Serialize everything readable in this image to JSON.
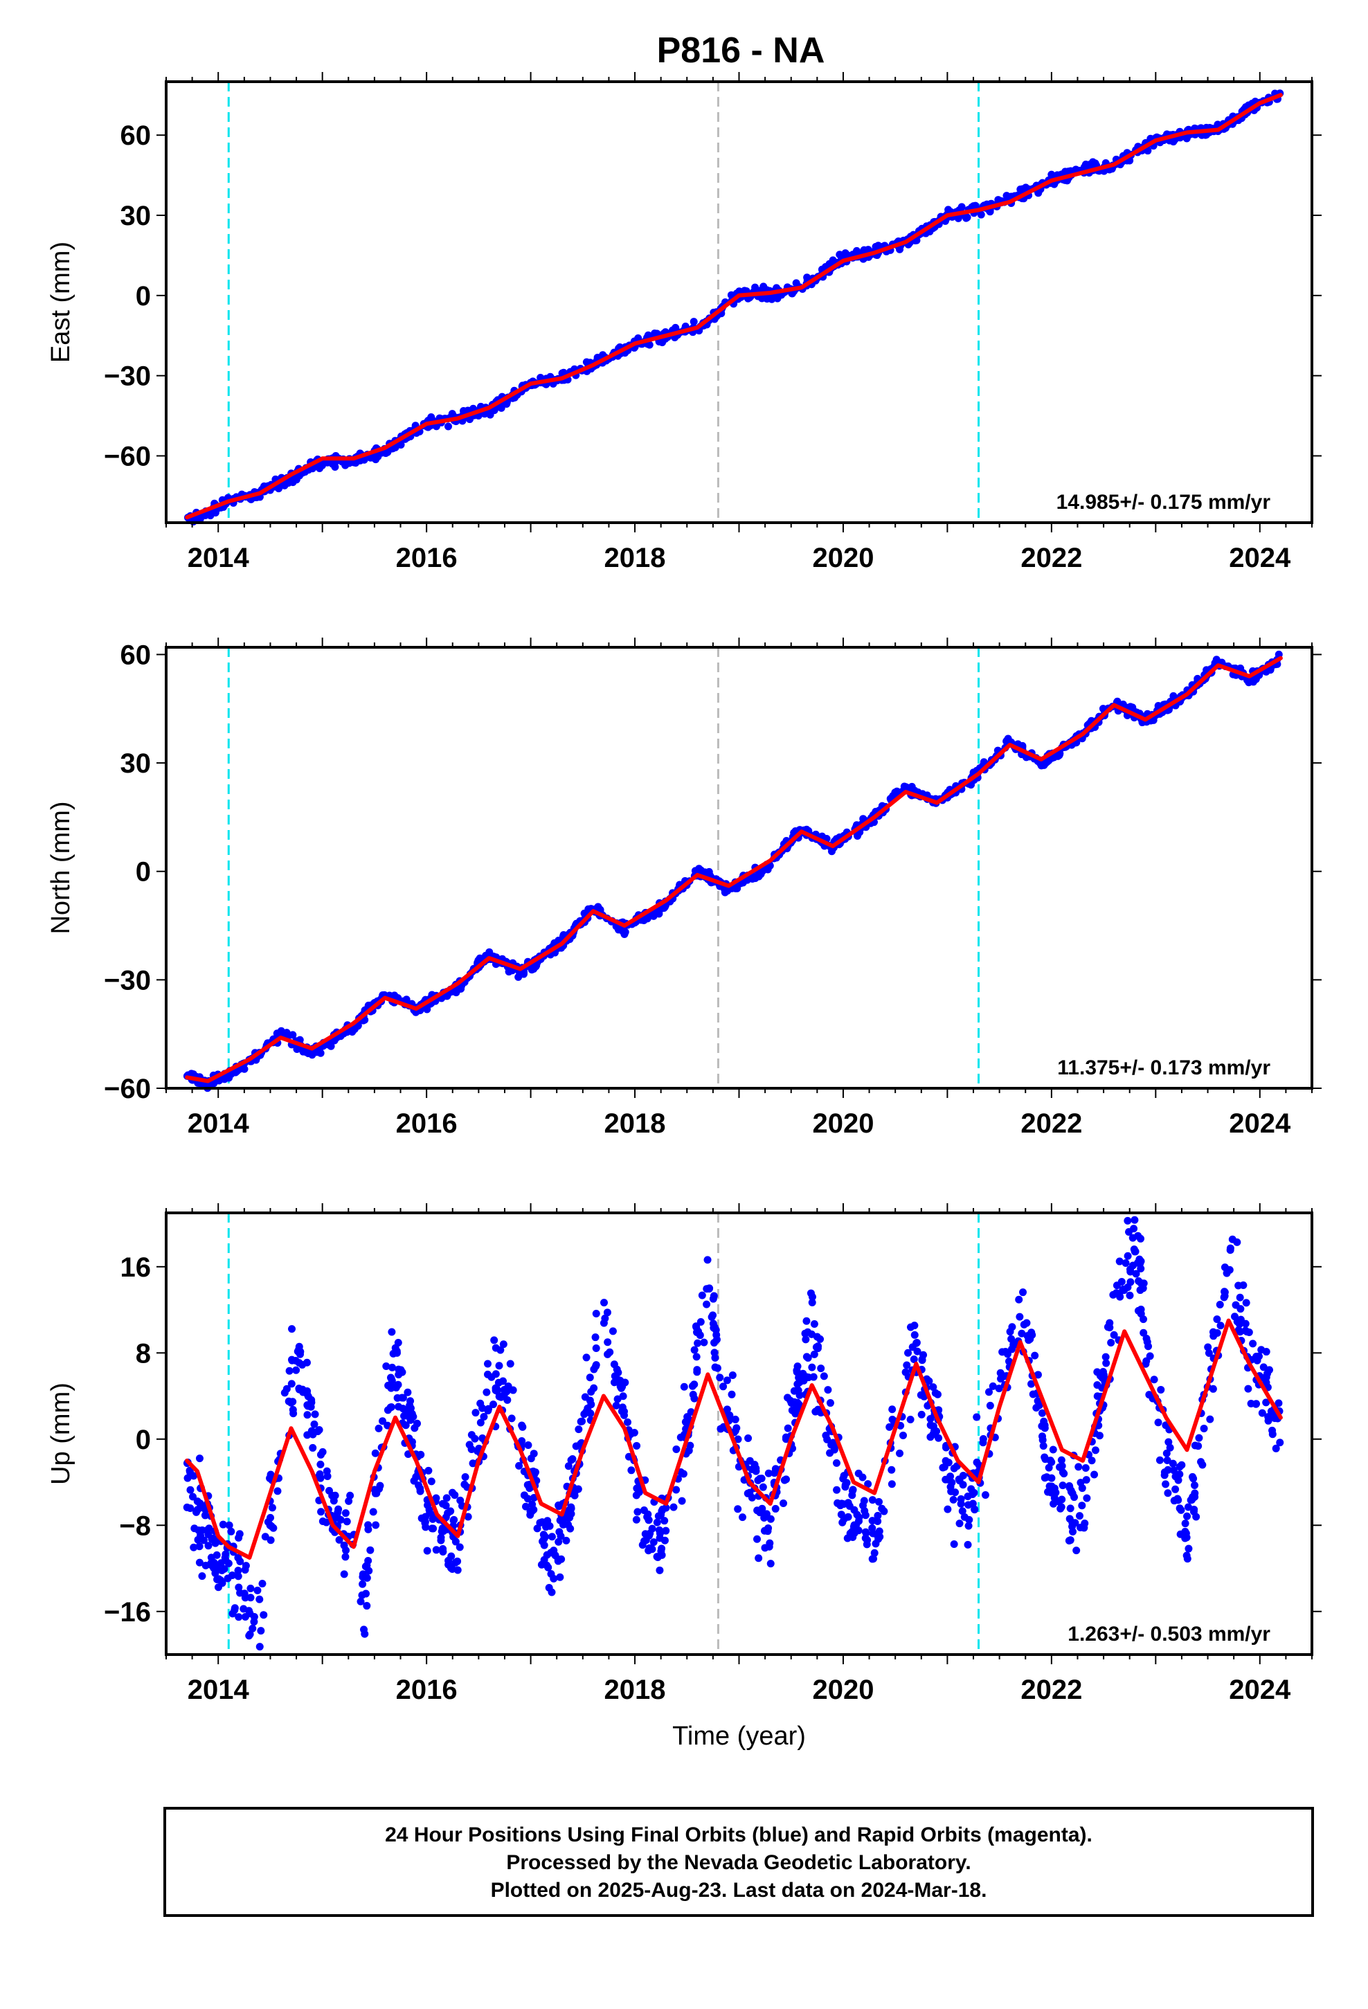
{
  "chart_data": [
    {
      "type": "scatter",
      "title": "P816 - NA",
      "ylabel": "East (mm)",
      "xlabel": "",
      "xlim": [
        2013.5,
        2024.5
      ],
      "ylim": [
        -85,
        80
      ],
      "xticks": [
        2014,
        2016,
        2018,
        2020,
        2022,
        2024
      ],
      "yticks": [
        -60,
        -30,
        0,
        30,
        60
      ],
      "rate_label": "14.985+/- 0.175 mm/yr",
      "series": [
        {
          "name": "Final Orbits",
          "color": "#0000ff",
          "points": [
            [
              2013.7,
              -84.5
            ],
            [
              2014.1,
              -77
            ],
            [
              2014.4,
              -74
            ],
            [
              2014.7,
              -68
            ],
            [
              2015.0,
              -62
            ],
            [
              2015.3,
              -62
            ],
            [
              2015.6,
              -58
            ],
            [
              2016.0,
              -48
            ],
            [
              2016.3,
              -46
            ],
            [
              2016.6,
              -43
            ],
            [
              2017.0,
              -33
            ],
            [
              2017.3,
              -31
            ],
            [
              2017.6,
              -26
            ],
            [
              2018.0,
              -18
            ],
            [
              2018.3,
              -15
            ],
            [
              2018.6,
              -12
            ],
            [
              2019.0,
              0
            ],
            [
              2019.3,
              1
            ],
            [
              2019.6,
              3
            ],
            [
              2020.0,
              14
            ],
            [
              2020.3,
              16
            ],
            [
              2020.6,
              20
            ],
            [
              2021.0,
              30
            ],
            [
              2021.3,
              32
            ],
            [
              2021.6,
              36
            ],
            [
              2022.0,
              43
            ],
            [
              2022.3,
              47
            ],
            [
              2022.6,
              49
            ],
            [
              2023.0,
              58
            ],
            [
              2023.3,
              61
            ],
            [
              2023.6,
              62
            ],
            [
              2024.0,
              72
            ],
            [
              2024.2,
              75
            ]
          ]
        },
        {
          "name": "Model",
          "color": "#ff0000",
          "points": [
            [
              2013.7,
              -83
            ],
            [
              2014.1,
              -77
            ],
            [
              2014.4,
              -74
            ],
            [
              2014.7,
              -67
            ],
            [
              2015.0,
              -61
            ],
            [
              2015.3,
              -61
            ],
            [
              2015.6,
              -57
            ],
            [
              2016.0,
              -48
            ],
            [
              2016.3,
              -46
            ],
            [
              2016.6,
              -42
            ],
            [
              2017.0,
              -33
            ],
            [
              2017.3,
              -31
            ],
            [
              2017.6,
              -26
            ],
            [
              2018.0,
              -18
            ],
            [
              2018.3,
              -15
            ],
            [
              2018.6,
              -12
            ],
            [
              2019.0,
              0
            ],
            [
              2019.3,
              1
            ],
            [
              2019.6,
              3
            ],
            [
              2020.0,
              13
            ],
            [
              2020.3,
              16
            ],
            [
              2020.6,
              20
            ],
            [
              2021.0,
              30
            ],
            [
              2021.3,
              32
            ],
            [
              2021.6,
              35
            ],
            [
              2022.0,
              43
            ],
            [
              2022.3,
              46
            ],
            [
              2022.6,
              49
            ],
            [
              2023.0,
              58
            ],
            [
              2023.3,
              61
            ],
            [
              2023.6,
              62
            ],
            [
              2024.0,
              72
            ],
            [
              2024.2,
              75
            ]
          ]
        }
      ],
      "vlines": [
        {
          "x": 2014.1,
          "color": "#00e5ee"
        },
        {
          "x": 2018.8,
          "color": "#bbbbbb"
        },
        {
          "x": 2021.3,
          "color": "#00e5ee"
        }
      ]
    },
    {
      "type": "scatter",
      "title": "",
      "ylabel": "North (mm)",
      "xlabel": "",
      "xlim": [
        2013.5,
        2024.5
      ],
      "ylim": [
        -60,
        62
      ],
      "xticks": [
        2014,
        2016,
        2018,
        2020,
        2022,
        2024
      ],
      "yticks": [
        -60,
        -30,
        0,
        30,
        60
      ],
      "rate_label": "11.375+/- 0.173 mm/yr",
      "series": [
        {
          "name": "Final Orbits",
          "color": "#0000ff",
          "points": [
            [
              2013.7,
              -56
            ],
            [
              2013.9,
              -59
            ],
            [
              2014.1,
              -56
            ],
            [
              2014.3,
              -53
            ],
            [
              2014.6,
              -45
            ],
            [
              2014.9,
              -50
            ],
            [
              2015.3,
              -43
            ],
            [
              2015.6,
              -34
            ],
            [
              2015.9,
              -38
            ],
            [
              2016.3,
              -32
            ],
            [
              2016.6,
              -23
            ],
            [
              2016.9,
              -28
            ],
            [
              2017.3,
              -20
            ],
            [
              2017.6,
              -10
            ],
            [
              2017.9,
              -16
            ],
            [
              2018.3,
              -9
            ],
            [
              2018.6,
              0
            ],
            [
              2018.9,
              -5
            ],
            [
              2019.3,
              2
            ],
            [
              2019.6,
              12
            ],
            [
              2019.9,
              7
            ],
            [
              2020.3,
              15
            ],
            [
              2020.6,
              23
            ],
            [
              2020.9,
              19
            ],
            [
              2021.3,
              27
            ],
            [
              2021.6,
              36
            ],
            [
              2021.9,
              30
            ],
            [
              2022.3,
              38
            ],
            [
              2022.6,
              47
            ],
            [
              2022.9,
              42
            ],
            [
              2023.3,
              49
            ],
            [
              2023.6,
              58
            ],
            [
              2023.9,
              53
            ],
            [
              2024.2,
              59
            ]
          ]
        },
        {
          "name": "Model",
          "color": "#ff0000",
          "points": [
            [
              2013.7,
              -57
            ],
            [
              2013.9,
              -58
            ],
            [
              2014.1,
              -55
            ],
            [
              2014.3,
              -52
            ],
            [
              2014.6,
              -46
            ],
            [
              2014.9,
              -49
            ],
            [
              2015.3,
              -42
            ],
            [
              2015.6,
              -35
            ],
            [
              2015.9,
              -38
            ],
            [
              2016.3,
              -31
            ],
            [
              2016.6,
              -24
            ],
            [
              2016.9,
              -27
            ],
            [
              2017.3,
              -20
            ],
            [
              2017.6,
              -11
            ],
            [
              2017.9,
              -15
            ],
            [
              2018.3,
              -8
            ],
            [
              2018.6,
              -1
            ],
            [
              2018.9,
              -4
            ],
            [
              2019.3,
              3
            ],
            [
              2019.6,
              11
            ],
            [
              2019.9,
              7
            ],
            [
              2020.3,
              15
            ],
            [
              2020.6,
              22
            ],
            [
              2020.9,
              19
            ],
            [
              2021.3,
              27
            ],
            [
              2021.6,
              35
            ],
            [
              2021.9,
              31
            ],
            [
              2022.3,
              38
            ],
            [
              2022.6,
              46
            ],
            [
              2022.9,
              42
            ],
            [
              2023.3,
              49
            ],
            [
              2023.6,
              57
            ],
            [
              2023.9,
              54
            ],
            [
              2024.2,
              59
            ]
          ]
        }
      ],
      "vlines": [
        {
          "x": 2014.1,
          "color": "#00e5ee"
        },
        {
          "x": 2018.8,
          "color": "#bbbbbb"
        },
        {
          "x": 2021.3,
          "color": "#00e5ee"
        }
      ]
    },
    {
      "type": "scatter",
      "title": "",
      "ylabel": "Up (mm)",
      "xlabel": "Time (year)",
      "xlim": [
        2013.5,
        2024.5
      ],
      "ylim": [
        -20,
        21
      ],
      "xticks": [
        2014,
        2016,
        2018,
        2020,
        2022,
        2024
      ],
      "yticks": [
        -16,
        -8,
        0,
        8,
        16
      ],
      "rate_label": "1.263+/- 0.503 mm/yr",
      "series": [
        {
          "name": "Final Orbits",
          "color": "#0000ff",
          "points": [
            [
              2013.7,
              1
            ],
            [
              2013.7,
              -5
            ],
            [
              2014.1,
              -12
            ],
            [
              2014.2,
              -14
            ],
            [
              2014.4,
              -17
            ],
            [
              2014.5,
              -7
            ],
            [
              2014.7,
              5
            ],
            [
              2014.8,
              7
            ],
            [
              2015.0,
              -5
            ],
            [
              2015.3,
              -10
            ],
            [
              2015.4,
              -15
            ],
            [
              2015.6,
              3
            ],
            [
              2015.7,
              7
            ],
            [
              2016.0,
              -6
            ],
            [
              2016.3,
              -10
            ],
            [
              2016.5,
              0
            ],
            [
              2016.7,
              7
            ],
            [
              2017.0,
              -4
            ],
            [
              2017.2,
              -12
            ],
            [
              2017.4,
              -5
            ],
            [
              2017.7,
              12
            ],
            [
              2017.8,
              8
            ],
            [
              2018.0,
              -3
            ],
            [
              2018.2,
              -10
            ],
            [
              2018.5,
              1
            ],
            [
              2018.7,
              14
            ],
            [
              2018.8,
              7
            ],
            [
              2019.0,
              -2
            ],
            [
              2019.3,
              -8
            ],
            [
              2019.6,
              5
            ],
            [
              2019.7,
              10
            ],
            [
              2020.0,
              -6
            ],
            [
              2020.3,
              -9
            ],
            [
              2020.5,
              2
            ],
            [
              2020.7,
              9
            ],
            [
              2021.0,
              -3
            ],
            [
              2021.2,
              -6
            ],
            [
              2021.5,
              4
            ],
            [
              2021.7,
              14
            ],
            [
              2022.0,
              -4
            ],
            [
              2022.3,
              -7
            ],
            [
              2022.5,
              5
            ],
            [
              2022.7,
              16
            ],
            [
              2022.8,
              19
            ],
            [
              2023.0,
              3
            ],
            [
              2023.3,
              -10
            ],
            [
              2023.5,
              5
            ],
            [
              2023.7,
              17
            ],
            [
              2023.9,
              8
            ],
            [
              2024.2,
              1
            ]
          ]
        },
        {
          "name": "Model",
          "color": "#ff0000",
          "points": [
            [
              2013.7,
              -2
            ],
            [
              2013.8,
              -3
            ],
            [
              2014.0,
              -9
            ],
            [
              2014.1,
              -10
            ],
            [
              2014.3,
              -11
            ],
            [
              2014.5,
              -5
            ],
            [
              2014.7,
              1
            ],
            [
              2014.9,
              -3
            ],
            [
              2015.1,
              -8
            ],
            [
              2015.3,
              -10
            ],
            [
              2015.5,
              -3
            ],
            [
              2015.7,
              2
            ],
            [
              2015.9,
              -2
            ],
            [
              2016.1,
              -7
            ],
            [
              2016.3,
              -9
            ],
            [
              2016.5,
              -2
            ],
            [
              2016.7,
              3
            ],
            [
              2016.9,
              -1
            ],
            [
              2017.1,
              -6
            ],
            [
              2017.3,
              -7
            ],
            [
              2017.5,
              -1
            ],
            [
              2017.7,
              4
            ],
            [
              2017.9,
              1
            ],
            [
              2018.1,
              -5
            ],
            [
              2018.3,
              -6
            ],
            [
              2018.5,
              0
            ],
            [
              2018.7,
              6
            ],
            [
              2018.9,
              1
            ],
            [
              2019.1,
              -4
            ],
            [
              2019.3,
              -6
            ],
            [
              2019.5,
              0
            ],
            [
              2019.7,
              5
            ],
            [
              2019.9,
              1
            ],
            [
              2020.1,
              -4
            ],
            [
              2020.3,
              -5
            ],
            [
              2020.5,
              1
            ],
            [
              2020.7,
              7
            ],
            [
              2020.9,
              2
            ],
            [
              2021.1,
              -2
            ],
            [
              2021.3,
              -4
            ],
            [
              2021.5,
              3
            ],
            [
              2021.7,
              9
            ],
            [
              2021.9,
              4
            ],
            [
              2022.1,
              -1
            ],
            [
              2022.3,
              -2
            ],
            [
              2022.5,
              4
            ],
            [
              2022.7,
              10
            ],
            [
              2022.9,
              6
            ],
            [
              2023.1,
              2
            ],
            [
              2023.3,
              -1
            ],
            [
              2023.5,
              5
            ],
            [
              2023.7,
              11
            ],
            [
              2023.9,
              7
            ],
            [
              2024.2,
              2
            ]
          ]
        }
      ],
      "vlines": [
        {
          "x": 2014.1,
          "color": "#00e5ee"
        },
        {
          "x": 2018.8,
          "color": "#bbbbbb"
        },
        {
          "x": 2021.3,
          "color": "#00e5ee"
        }
      ]
    }
  ],
  "caption": {
    "lines": [
      "24 Hour Positions Using Final Orbits (blue) and Rapid Orbits (magenta).",
      "Processed by the Nevada Geodetic Laboratory.",
      "Plotted on 2025-Aug-23. Last data on 2024-Mar-18."
    ]
  }
}
